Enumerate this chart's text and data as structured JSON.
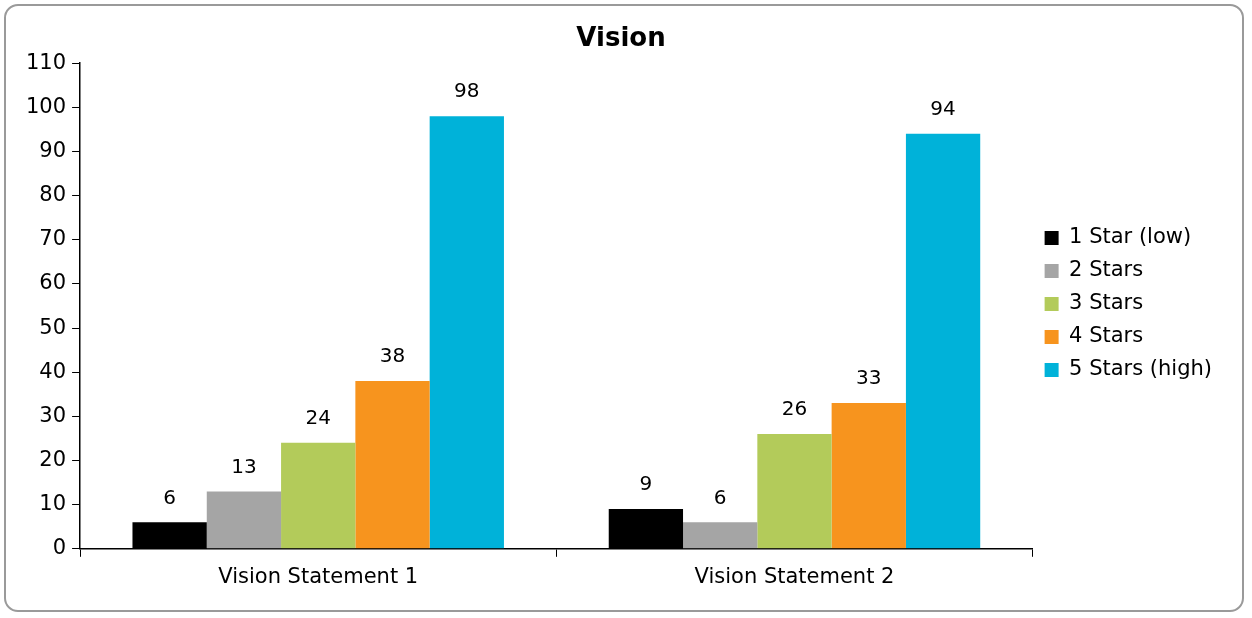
{
  "chart_data": {
    "type": "bar",
    "title": "Vision",
    "categories": [
      "Vision Statement 1",
      "Vision Statement 2"
    ],
    "series": [
      {
        "name": "1 Star (low)",
        "color": "#000000",
        "values": [
          6,
          9
        ]
      },
      {
        "name": "2 Stars",
        "color": "#a5a5a5",
        "values": [
          13,
          6
        ]
      },
      {
        "name": "3 Stars",
        "color": "#b3cb5a",
        "values": [
          24,
          26
        ]
      },
      {
        "name": "4 Stars",
        "color": "#f7941e",
        "values": [
          38,
          33
        ]
      },
      {
        "name": "5 Stars (high)",
        "color": "#00b2d9",
        "values": [
          98,
          94
        ]
      }
    ],
    "ylim": [
      0,
      110
    ],
    "yticks": [
      0,
      10,
      20,
      30,
      40,
      50,
      60,
      70,
      80,
      90,
      100,
      110
    ],
    "grid": false,
    "legend": "right",
    "data_labels": true
  }
}
